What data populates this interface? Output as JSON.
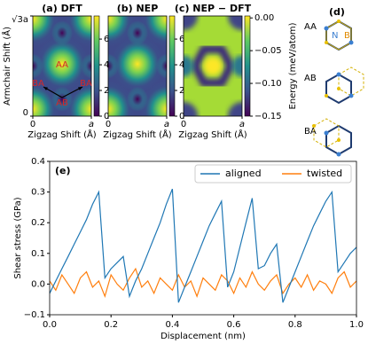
{
  "chart_data": [
    {
      "type": "heatmap",
      "title": "(a) DFT",
      "xlabel": "Zigzag Shift (Å)",
      "ylabel": "Armchair Shift (Å)",
      "xlim": [
        0,
        1
      ],
      "xticks": [
        0,
        {
          "value": 1,
          "label": "a"
        }
      ],
      "ylim": [
        0,
        1.732
      ],
      "yticks": [
        0,
        {
          "value": 1.732,
          "label": "√3a"
        }
      ],
      "clim": [
        0,
        7.8
      ],
      "cticks": [
        0,
        2,
        4,
        6
      ],
      "annotations": [
        "AA",
        "BA",
        "AB",
        "BA"
      ]
    },
    {
      "type": "heatmap",
      "title": "(b) NEP",
      "xlabel": "Zigzag Shift (Å)",
      "xlim": [
        0,
        1
      ],
      "xticks": [
        0,
        {
          "value": 1,
          "label": "a"
        }
      ],
      "clim": [
        0,
        7.8
      ],
      "cticks": [
        0,
        2,
        4,
        6
      ]
    },
    {
      "type": "heatmap",
      "title": "(c) NEP − DFT",
      "xlabel": "Zigzag Shift (Å)",
      "xlim": [
        0,
        1
      ],
      "xticks": [
        0,
        {
          "value": 1,
          "label": "a"
        }
      ],
      "clim": [
        -0.15,
        0.003
      ],
      "cticks": [
        {
          "value": 0,
          "label": "0.00"
        },
        {
          "value": -0.05,
          "label": "−0.05"
        },
        {
          "value": -0.1,
          "label": "−0.10"
        },
        {
          "value": -0.15,
          "label": "−0.15"
        }
      ],
      "cbar_label": "Energy (meV/atom)"
    },
    {
      "type": "line",
      "annotation": "(e)",
      "xlabel": "Displacement (nm)",
      "ylabel": "Shear stress (GPa)",
      "x": [
        0,
        0.02,
        0.04,
        0.06,
        0.08,
        0.1,
        0.12,
        0.14,
        0.16,
        0.18,
        0.2,
        0.22,
        0.24,
        0.26,
        0.28,
        0.3,
        0.32,
        0.34,
        0.36,
        0.38,
        0.4,
        0.42,
        0.44,
        0.46,
        0.48,
        0.5,
        0.52,
        0.54,
        0.56,
        0.58,
        0.6,
        0.62,
        0.64,
        0.66,
        0.68,
        0.7,
        0.72,
        0.74,
        0.76,
        0.78,
        0.8,
        0.82,
        0.84,
        0.86,
        0.88,
        0.9,
        0.92,
        0.94,
        0.96,
        0.98,
        1
      ],
      "series": [
        {
          "name": "aligned",
          "color": "#1f77b4",
          "values": [
            -0.03,
            0.01,
            0.05,
            0.09,
            0.13,
            0.17,
            0.21,
            0.26,
            0.3,
            0.02,
            0.05,
            0.07,
            0.09,
            -0.04,
            0.01,
            0.05,
            0.1,
            0.15,
            0.2,
            0.26,
            0.31,
            -0.06,
            -0.01,
            0.04,
            0.09,
            0.14,
            0.19,
            0.23,
            0.27,
            -0.01,
            0.04,
            0.12,
            0.2,
            0.28,
            0.05,
            0.06,
            0.1,
            0.13,
            -0.06,
            -0.01,
            0.04,
            0.09,
            0.14,
            0.19,
            0.23,
            0.27,
            0.3,
            0.04,
            0.07,
            0.1,
            0.12
          ]
        },
        {
          "name": "twisted",
          "color": "#ff7f0e",
          "values": [
            0.01,
            -0.02,
            0.03,
            0.0,
            -0.03,
            0.02,
            0.04,
            -0.01,
            0.01,
            -0.04,
            0.03,
            0.0,
            -0.02,
            0.02,
            0.05,
            -0.01,
            0.01,
            -0.03,
            0.02,
            0.0,
            -0.02,
            0.03,
            -0.01,
            0.01,
            -0.04,
            0.02,
            0.0,
            -0.02,
            0.03,
            0.01,
            -0.03,
            0.02,
            -0.01,
            0.04,
            0.0,
            -0.02,
            0.01,
            0.03,
            -0.03,
            0.0,
            0.02,
            -0.01,
            0.03,
            -0.02,
            0.01,
            0.0,
            -0.03,
            0.02,
            0.04,
            -0.01,
            0.01
          ]
        }
      ],
      "xlim": [
        0,
        1
      ],
      "xticks": [
        {
          "value": 0,
          "label": "0.0"
        },
        {
          "value": 0.2,
          "label": "0.2"
        },
        {
          "value": 0.4,
          "label": "0.4"
        },
        {
          "value": 0.6,
          "label": "0.6"
        },
        {
          "value": 0.8,
          "label": "0.8"
        },
        {
          "value": 1,
          "label": "1.0"
        }
      ],
      "ylim": [
        -0.1,
        0.4
      ],
      "yticks": [
        {
          "value": -0.1,
          "label": "−0.1"
        },
        {
          "value": 0,
          "label": "0.0"
        },
        {
          "value": 0.1,
          "label": "0.1"
        },
        {
          "value": 0.2,
          "label": "0.2"
        },
        {
          "value": 0.3,
          "label": "0.3"
        },
        {
          "value": 0.4,
          "label": "0.4"
        }
      ],
      "legend": "upper right"
    }
  ],
  "panel_d": {
    "label": "(d)",
    "rows": [
      "AA",
      "AB",
      "BA"
    ],
    "atoms": [
      "N",
      "B"
    ]
  }
}
